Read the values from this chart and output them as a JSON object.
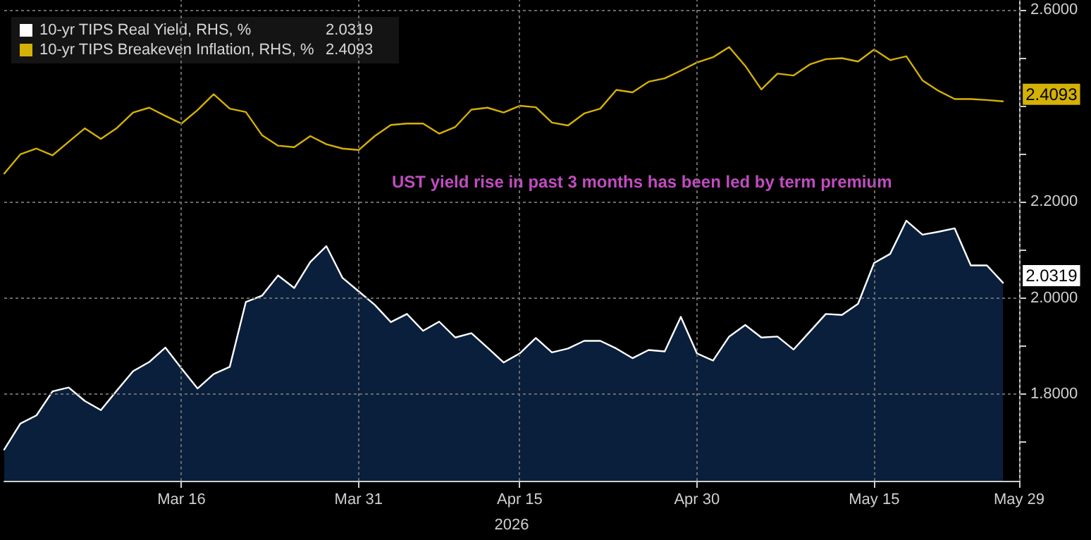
{
  "chart_data": {
    "type": "line",
    "xlabel": "2026",
    "categories": [
      null,
      null,
      null,
      null,
      null,
      null,
      null,
      null,
      null,
      null,
      null,
      "Mar 16",
      null,
      null,
      null,
      null,
      null,
      null,
      null,
      null,
      null,
      null,
      "Mar 31",
      null,
      null,
      null,
      null,
      null,
      null,
      null,
      null,
      null,
      "Apr 15",
      null,
      null,
      null,
      null,
      null,
      null,
      null,
      null,
      null,
      null,
      "Apr 30",
      null,
      null,
      null,
      null,
      null,
      null,
      null,
      null,
      null,
      null,
      "May 15",
      null,
      null,
      null,
      null,
      null,
      null,
      null,
      null,
      "May 29"
    ],
    "series": [
      {
        "name": "10-yr TIPS Real Yield, RHS, %",
        "type": "area",
        "color": "#ffffff",
        "values": [
          1.685,
          1.739,
          1.756,
          1.806,
          1.814,
          1.786,
          1.767,
          1.808,
          1.848,
          1.867,
          1.897,
          1.854,
          1.812,
          1.842,
          1.857,
          1.992,
          2.005,
          2.047,
          2.021,
          2.075,
          2.108,
          2.042,
          2.014,
          1.986,
          1.95,
          1.967,
          1.932,
          1.951,
          1.918,
          1.927,
          1.897,
          1.866,
          1.885,
          1.917,
          1.887,
          1.895,
          1.911,
          1.911,
          1.895,
          1.875,
          1.892,
          1.889,
          1.961,
          1.885,
          1.87,
          1.92,
          1.944,
          1.918,
          1.92,
          1.893,
          1.93,
          1.967,
          1.965,
          1.988,
          2.073,
          2.092,
          2.161,
          2.132,
          2.138,
          2.145,
          2.068,
          2.068,
          2.0319,
          null
        ],
        "value_labels": [
          null,
          null,
          null,
          null,
          null,
          null,
          null,
          null,
          null,
          null,
          null,
          null,
          null,
          null,
          null,
          null,
          null,
          null,
          null,
          null,
          null,
          null,
          null,
          null,
          null,
          null,
          null,
          null,
          null,
          null,
          null,
          null,
          null,
          null,
          null,
          null,
          null,
          null,
          null,
          null,
          null,
          null,
          null,
          null,
          null,
          null,
          null,
          null,
          null,
          null,
          null,
          null,
          null,
          null,
          null,
          null,
          null,
          null,
          null,
          null,
          null,
          null,
          "2.0319",
          null
        ]
      },
      {
        "name": "10-yr TIPS Breakeven Inflation, RHS, %",
        "color": "#d4b106",
        "values": [
          2.259,
          2.299,
          2.311,
          2.297,
          2.325,
          2.353,
          2.331,
          2.354,
          2.386,
          2.396,
          2.379,
          2.363,
          2.391,
          2.424,
          2.394,
          2.387,
          2.339,
          2.317,
          2.314,
          2.337,
          2.32,
          2.311,
          2.308,
          2.337,
          2.36,
          2.363,
          2.363,
          2.342,
          2.356,
          2.392,
          2.396,
          2.386,
          2.4,
          2.397,
          2.365,
          2.359,
          2.384,
          2.394,
          2.433,
          2.428,
          2.45,
          2.457,
          2.473,
          2.49,
          2.501,
          2.522,
          2.483,
          2.434,
          2.467,
          2.463,
          2.486,
          2.497,
          2.499,
          2.492,
          2.517,
          2.495,
          2.503,
          2.453,
          2.431,
          2.414,
          2.414,
          2.412,
          2.4093,
          null
        ],
        "value_labels": [
          null,
          null,
          null,
          null,
          null,
          null,
          null,
          null,
          null,
          null,
          null,
          null,
          null,
          null,
          null,
          null,
          null,
          null,
          null,
          null,
          null,
          null,
          null,
          null,
          null,
          null,
          null,
          null,
          null,
          null,
          null,
          null,
          null,
          null,
          null,
          null,
          null,
          null,
          null,
          null,
          null,
          null,
          null,
          null,
          null,
          null,
          null,
          null,
          null,
          null,
          null,
          null,
          null,
          null,
          null,
          null,
          null,
          null,
          null,
          null,
          null,
          null,
          "2.4093",
          null
        ]
      }
    ],
    "ylim": [
      1.62,
      2.62
    ],
    "yticks": [
      {
        "value": 1.7,
        "label": null
      },
      {
        "value": 1.8,
        "label": "1.8000"
      },
      {
        "value": 1.9,
        "label": null
      },
      {
        "value": 2.0,
        "label": "2.0000"
      },
      {
        "value": 2.1,
        "label": null
      },
      {
        "value": 2.2,
        "label": "2.2000"
      },
      {
        "value": 2.3,
        "label": null
      },
      {
        "value": 2.4,
        "label": null
      },
      {
        "value": 2.5,
        "label": null
      },
      {
        "value": 2.6,
        "label": "2.6000"
      }
    ],
    "grid": true,
    "legend": "top left",
    "marker": "none",
    "line_style": "solid",
    "annotations": [
      "UST yield rise in past 3 months has been led by term premium"
    ]
  }
}
